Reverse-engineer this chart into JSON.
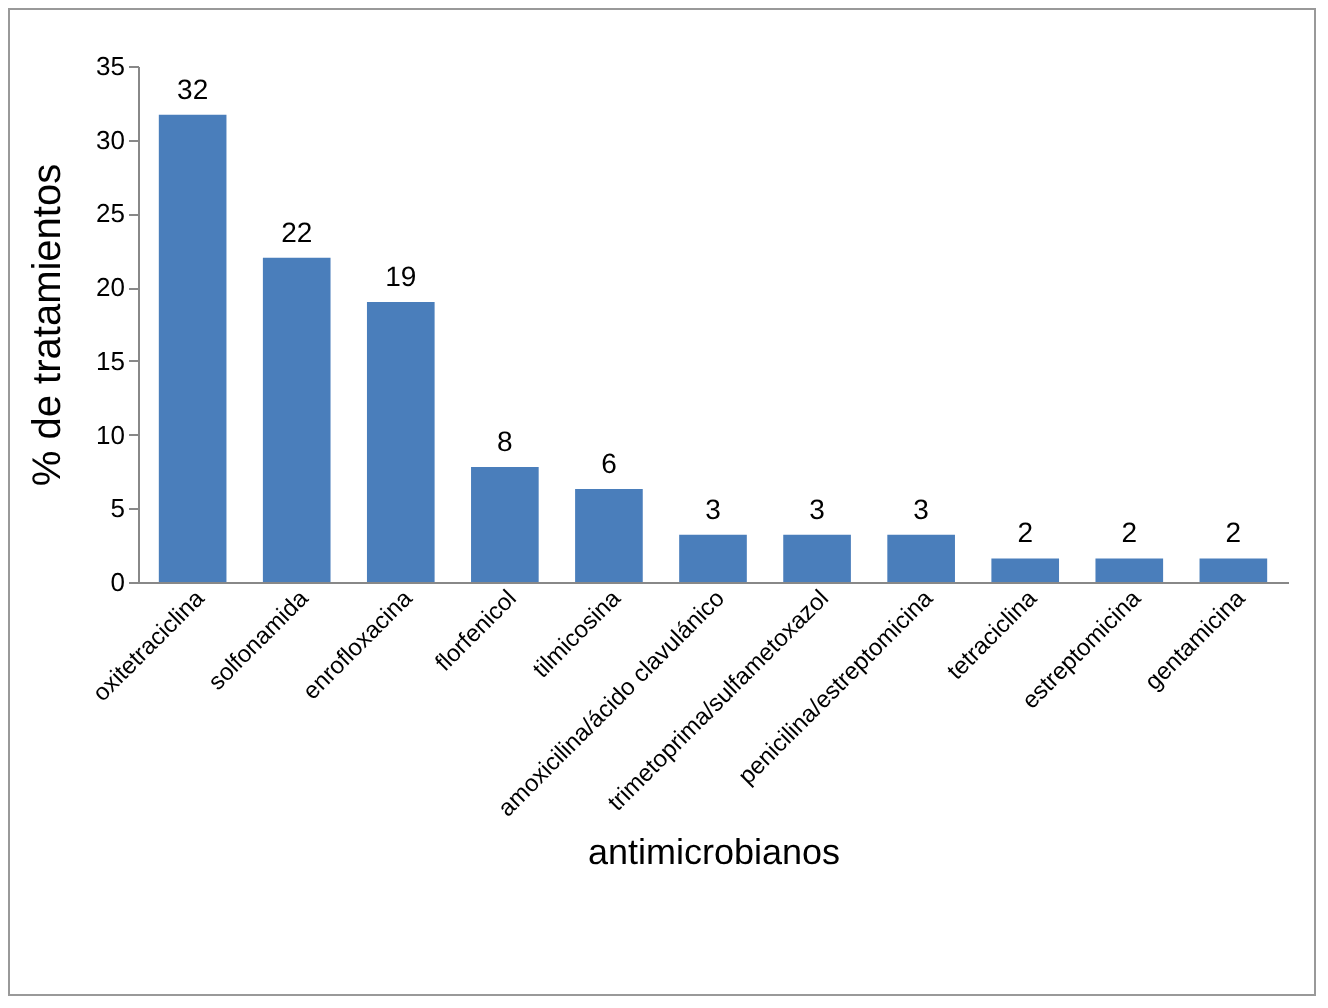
{
  "chart_data": {
    "type": "bar",
    "xlabel": "antimicrobianos",
    "ylabel": "% de tratamientos",
    "categories": [
      "oxitetraciclina",
      "solfonamida",
      "enrofloxacina",
      "florfenicol",
      "tilmicosina",
      "amoxicilina/ácido clavulánico",
      "trimetoprima/sulfametoxazol",
      "penicilina/estreptomicina",
      "tetraciclina",
      "estreptomicina",
      "gentamicina"
    ],
    "values": [
      31.7,
      22,
      19,
      7.8,
      6.3,
      3.2,
      3.2,
      3.2,
      1.6,
      1.6,
      1.6
    ],
    "value_labels": [
      "32",
      "22",
      "19",
      "8",
      "6",
      "3",
      "3",
      "3",
      "2",
      "2",
      "2"
    ],
    "color": "#4a7ebb",
    "ylim": [
      0,
      35
    ],
    "yticks": [
      0,
      5,
      10,
      15,
      20,
      25,
      30,
      35
    ],
    "grid": false
  }
}
